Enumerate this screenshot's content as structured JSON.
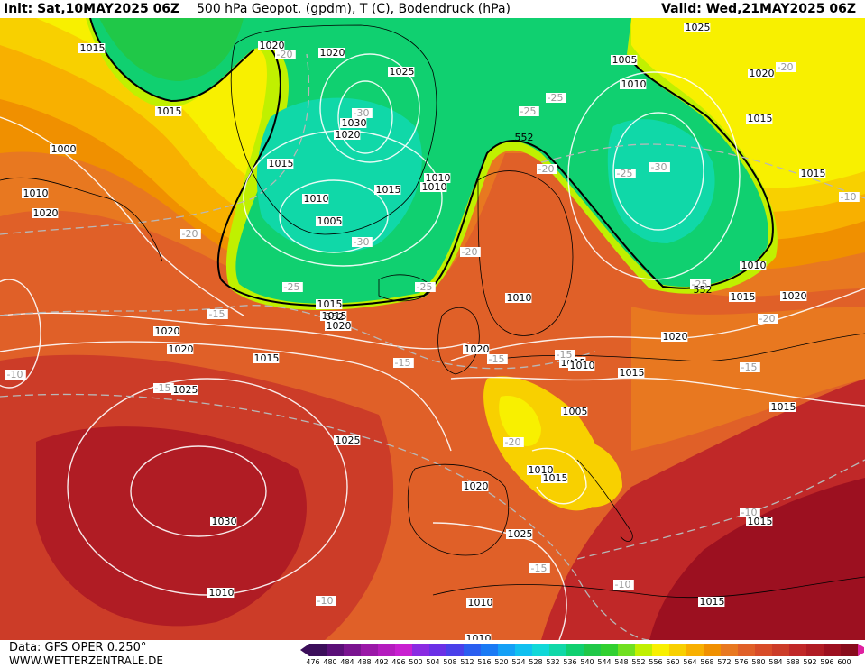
{
  "header": {
    "init": "Init: Sat,10MAY2025 06Z",
    "title": "500 hPa Geopot. (gpdm), T (C), Bodendruck (hPa)",
    "valid": "Valid: Wed,21MAY2025 06Z"
  },
  "footer": {
    "data_source": "Data: GFS OPER 0.250°",
    "website": "WWW.WETTERZENTRALE.DE"
  },
  "colorbar": {
    "ticks": [
      "476",
      "480",
      "484",
      "488",
      "492",
      "496",
      "500",
      "504",
      "508",
      "512",
      "516",
      "520",
      "524",
      "528",
      "532",
      "536",
      "540",
      "544",
      "548",
      "552",
      "556",
      "560",
      "564",
      "568",
      "572",
      "576",
      "580",
      "584",
      "588",
      "592",
      "596",
      "600"
    ],
    "colors": [
      "#3b0e5a",
      "#5a0f78",
      "#7a1490",
      "#9a18a8",
      "#b41cbe",
      "#c820d0",
      "#8a2be2",
      "#6a30e6",
      "#4a40ea",
      "#2a5ef0",
      "#1a7af4",
      "#14a0f6",
      "#10c0f0",
      "#10d8d8",
      "#10d8a8",
      "#10d070",
      "#20c848",
      "#30d030",
      "#70e020",
      "#c0f000",
      "#f8f000",
      "#f8d000",
      "#f8b000",
      "#f09000",
      "#e87820",
      "#e06028",
      "#d84c28",
      "#cc3c28",
      "#c02828",
      "#b01c24",
      "#9c1020",
      "#880c1c"
    ],
    "end_color": "#e020a0"
  },
  "pressure_labels": [
    "1015",
    "1020",
    "1020",
    "1025",
    "1025",
    "1015",
    "1015",
    "1000",
    "1010",
    "1020",
    "1030",
    "1020",
    "1010",
    "1015",
    "1010",
    "1010",
    "1005",
    "1010",
    "1005",
    "1015",
    "1020",
    "1015",
    "1010",
    "1010",
    "1015",
    "1020",
    "1020",
    "1015",
    "1025",
    "1020",
    "1020",
    "1010",
    "1015",
    "1005",
    "1025",
    "1030",
    "1010",
    "1020",
    "1015",
    "1015",
    "1025",
    "1010",
    "1015",
    "1010",
    "1020",
    "1020",
    "1015",
    "1015",
    "1015",
    "1015",
    "1010",
    "1010"
  ],
  "temp_labels": [
    "-20",
    "-30",
    "-25",
    "-25",
    "-30",
    "-20",
    "-30",
    "-25",
    "-20",
    "-30",
    "-20",
    "-20",
    "-25",
    "-25",
    "-15",
    "-25",
    "-20",
    "-15",
    "-15",
    "-15",
    "-15",
    "-10",
    "-20",
    "-10",
    "-10",
    "-10",
    "-15",
    "-10",
    "-15"
  ],
  "height_labels": [
    "552",
    "552",
    "552"
  ]
}
